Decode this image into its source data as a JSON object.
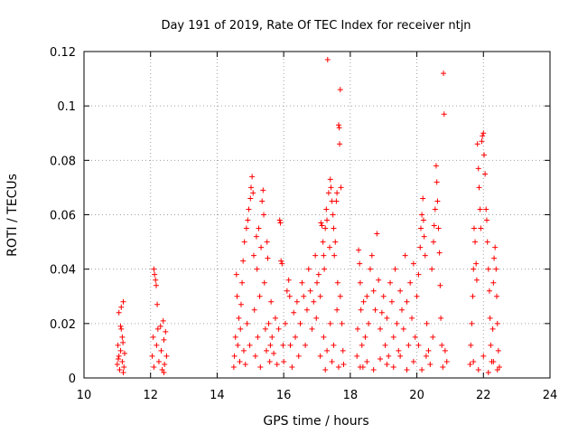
{
  "chart_data": {
    "type": "scatter",
    "title": "Day 191 of 2019, Rate Of TEC Index for receiver ntjn",
    "xlabel": "GPS time / hours",
    "ylabel": "ROTI / TECUs",
    "xlim": [
      10,
      24
    ],
    "ylim": [
      0,
      0.12
    ],
    "xticks": [
      10,
      12,
      14,
      16,
      18,
      20,
      22,
      24
    ],
    "xtick_labels": [
      "10",
      "12",
      "14",
      "16",
      "18",
      "20",
      "22",
      "24"
    ],
    "yticks": [
      0,
      0.02,
      0.04,
      0.06,
      0.08,
      0.1,
      0.12
    ],
    "ytick_labels": [
      "0",
      "0.02",
      "0.04",
      "0.06",
      "0.08",
      "0.1",
      "0.12"
    ],
    "grid": true,
    "marker": "+",
    "color": "#ff0000",
    "series": [
      {
        "name": "ROTI",
        "points": [
          [
            11.0,
            0.005
          ],
          [
            11.02,
            0.012
          ],
          [
            11.05,
            0.008
          ],
          [
            11.07,
            0.003
          ],
          [
            11.1,
            0.01
          ],
          [
            11.12,
            0.018
          ],
          [
            11.15,
            0.006
          ],
          [
            11.17,
            0.013
          ],
          [
            11.2,
            0.004
          ],
          [
            11.22,
            0.009
          ],
          [
            11.05,
            0.024
          ],
          [
            11.12,
            0.026
          ],
          [
            11.18,
            0.028
          ],
          [
            11.1,
            0.019
          ],
          [
            11.15,
            0.015
          ],
          [
            11.03,
            0.007
          ],
          [
            11.18,
            0.002
          ],
          [
            12.05,
            0.008
          ],
          [
            12.08,
            0.015
          ],
          [
            12.1,
            0.004
          ],
          [
            12.12,
            0.038
          ],
          [
            12.15,
            0.036
          ],
          [
            12.17,
            0.034
          ],
          [
            12.18,
            0.012
          ],
          [
            12.2,
            0.027
          ],
          [
            12.25,
            0.006
          ],
          [
            12.3,
            0.019
          ],
          [
            12.32,
            0.01
          ],
          [
            12.35,
            0.003
          ],
          [
            12.38,
            0.021
          ],
          [
            12.4,
            0.014
          ],
          [
            12.42,
            0.005
          ],
          [
            12.45,
            0.017
          ],
          [
            12.48,
            0.008
          ],
          [
            12.1,
            0.04
          ],
          [
            12.22,
            0.018
          ],
          [
            12.4,
            0.002
          ],
          [
            14.5,
            0.004
          ],
          [
            14.52,
            0.008
          ],
          [
            14.55,
            0.015
          ],
          [
            14.58,
            0.038
          ],
          [
            14.6,
            0.03
          ],
          [
            14.62,
            0.012
          ],
          [
            14.65,
            0.022
          ],
          [
            14.68,
            0.006
          ],
          [
            14.7,
            0.018
          ],
          [
            14.72,
            0.027
          ],
          [
            14.75,
            0.035
          ],
          [
            14.78,
            0.043
          ],
          [
            14.8,
            0.01
          ],
          [
            14.82,
            0.05
          ],
          [
            14.85,
            0.005
          ],
          [
            14.88,
            0.055
          ],
          [
            14.9,
            0.02
          ],
          [
            14.92,
            0.058
          ],
          [
            14.95,
            0.062
          ],
          [
            14.98,
            0.012
          ],
          [
            15.0,
            0.066
          ],
          [
            15.02,
            0.07
          ],
          [
            15.05,
            0.074
          ],
          [
            15.08,
            0.068
          ],
          [
            15.1,
            0.045
          ],
          [
            15.12,
            0.025
          ],
          [
            15.15,
            0.008
          ],
          [
            15.18,
            0.052
          ],
          [
            15.2,
            0.04
          ],
          [
            15.22,
            0.015
          ],
          [
            15.25,
            0.055
          ],
          [
            15.28,
            0.03
          ],
          [
            15.3,
            0.004
          ],
          [
            15.32,
            0.048
          ],
          [
            15.35,
            0.065
          ],
          [
            15.38,
            0.069
          ],
          [
            15.4,
            0.06
          ],
          [
            15.42,
            0.035
          ],
          [
            15.45,
            0.018
          ],
          [
            15.48,
            0.01
          ],
          [
            15.5,
            0.05
          ],
          [
            15.52,
            0.044
          ],
          [
            15.55,
            0.02
          ],
          [
            15.58,
            0.006
          ],
          [
            15.6,
            0.012
          ],
          [
            15.62,
            0.028
          ],
          [
            15.65,
            0.015
          ],
          [
            15.7,
            0.009
          ],
          [
            15.75,
            0.022
          ],
          [
            15.8,
            0.005
          ],
          [
            15.85,
            0.018
          ],
          [
            15.88,
            0.058
          ],
          [
            15.9,
            0.057
          ],
          [
            15.92,
            0.043
          ],
          [
            15.95,
            0.042
          ],
          [
            15.98,
            0.012
          ],
          [
            16.0,
            0.006
          ],
          [
            16.05,
            0.02
          ],
          [
            16.1,
            0.032
          ],
          [
            16.15,
            0.036
          ],
          [
            16.18,
            0.03
          ],
          [
            16.2,
            0.012
          ],
          [
            16.25,
            0.004
          ],
          [
            16.3,
            0.024
          ],
          [
            16.35,
            0.015
          ],
          [
            16.4,
            0.028
          ],
          [
            16.45,
            0.008
          ],
          [
            16.5,
            0.02
          ],
          [
            16.55,
            0.035
          ],
          [
            16.6,
            0.03
          ],
          [
            16.65,
            0.012
          ],
          [
            16.7,
            0.025
          ],
          [
            16.75,
            0.04
          ],
          [
            16.8,
            0.032
          ],
          [
            16.85,
            0.018
          ],
          [
            16.9,
            0.028
          ],
          [
            16.95,
            0.045
          ],
          [
            16.98,
            0.022
          ],
          [
            17.0,
            0.035
          ],
          [
            17.05,
            0.038
          ],
          [
            17.1,
            0.03
          ],
          [
            17.12,
            0.057
          ],
          [
            17.15,
            0.056
          ],
          [
            17.18,
            0.05
          ],
          [
            17.2,
            0.045
          ],
          [
            17.22,
            0.04
          ],
          [
            17.25,
            0.055
          ],
          [
            17.28,
            0.062
          ],
          [
            17.3,
            0.058
          ],
          [
            17.32,
            0.117
          ],
          [
            17.35,
            0.068
          ],
          [
            17.38,
            0.048
          ],
          [
            17.4,
            0.073
          ],
          [
            17.42,
            0.07
          ],
          [
            17.45,
            0.065
          ],
          [
            17.48,
            0.06
          ],
          [
            17.5,
            0.055
          ],
          [
            17.52,
            0.045
          ],
          [
            17.55,
            0.05
          ],
          [
            17.58,
            0.065
          ],
          [
            17.6,
            0.068
          ],
          [
            17.62,
            0.035
          ],
          [
            17.65,
            0.093
          ],
          [
            17.67,
            0.092
          ],
          [
            17.68,
            0.086
          ],
          [
            17.7,
            0.106
          ],
          [
            17.72,
            0.07
          ],
          [
            17.75,
            0.02
          ],
          [
            17.78,
            0.01
          ],
          [
            17.8,
            0.005
          ],
          [
            17.1,
            0.008
          ],
          [
            17.2,
            0.015
          ],
          [
            17.3,
            0.01
          ],
          [
            17.4,
            0.02
          ],
          [
            17.5,
            0.012
          ],
          [
            17.6,
            0.025
          ],
          [
            17.7,
            0.03
          ],
          [
            17.25,
            0.003
          ],
          [
            17.45,
            0.006
          ],
          [
            17.65,
            0.004
          ],
          [
            18.2,
            0.008
          ],
          [
            18.22,
            0.018
          ],
          [
            18.25,
            0.047
          ],
          [
            18.28,
            0.042
          ],
          [
            18.3,
            0.035
          ],
          [
            18.32,
            0.025
          ],
          [
            18.35,
            0.012
          ],
          [
            18.38,
            0.004
          ],
          [
            18.4,
            0.028
          ],
          [
            18.45,
            0.015
          ],
          [
            18.5,
            0.03
          ],
          [
            18.55,
            0.02
          ],
          [
            18.6,
            0.04
          ],
          [
            18.65,
            0.045
          ],
          [
            18.7,
            0.032
          ],
          [
            18.75,
            0.025
          ],
          [
            18.8,
            0.053
          ],
          [
            18.85,
            0.036
          ],
          [
            18.9,
            0.018
          ],
          [
            18.95,
            0.024
          ],
          [
            19.0,
            0.03
          ],
          [
            19.05,
            0.012
          ],
          [
            19.1,
            0.022
          ],
          [
            19.15,
            0.008
          ],
          [
            19.2,
            0.035
          ],
          [
            19.25,
            0.028
          ],
          [
            19.3,
            0.015
          ],
          [
            19.35,
            0.04
          ],
          [
            19.4,
            0.02
          ],
          [
            19.45,
            0.01
          ],
          [
            19.5,
            0.032
          ],
          [
            19.55,
            0.025
          ],
          [
            19.6,
            0.018
          ],
          [
            19.65,
            0.045
          ],
          [
            19.7,
            0.028
          ],
          [
            19.75,
            0.012
          ],
          [
            19.8,
            0.035
          ],
          [
            19.85,
            0.022
          ],
          [
            19.9,
            0.042
          ],
          [
            19.95,
            0.015
          ],
          [
            18.3,
            0.004
          ],
          [
            18.5,
            0.006
          ],
          [
            18.7,
            0.003
          ],
          [
            18.9,
            0.007
          ],
          [
            19.1,
            0.005
          ],
          [
            19.3,
            0.004
          ],
          [
            19.5,
            0.008
          ],
          [
            19.7,
            0.003
          ],
          [
            19.9,
            0.006
          ],
          [
            20.0,
            0.03
          ],
          [
            20.05,
            0.038
          ],
          [
            20.1,
            0.048
          ],
          [
            20.12,
            0.055
          ],
          [
            20.15,
            0.06
          ],
          [
            20.18,
            0.066
          ],
          [
            20.2,
            0.058
          ],
          [
            20.22,
            0.052
          ],
          [
            20.25,
            0.045
          ],
          [
            20.3,
            0.02
          ],
          [
            20.35,
            0.01
          ],
          [
            20.4,
            0.005
          ],
          [
            20.45,
            0.04
          ],
          [
            20.5,
            0.05
          ],
          [
            20.52,
            0.056
          ],
          [
            20.55,
            0.062
          ],
          [
            20.58,
            0.078
          ],
          [
            20.6,
            0.072
          ],
          [
            20.62,
            0.065
          ],
          [
            20.65,
            0.055
          ],
          [
            20.68,
            0.046
          ],
          [
            20.7,
            0.034
          ],
          [
            20.72,
            0.022
          ],
          [
            20.75,
            0.012
          ],
          [
            20.78,
            0.004
          ],
          [
            20.8,
            0.112
          ],
          [
            20.82,
            0.097
          ],
          [
            20.85,
            0.01
          ],
          [
            20.9,
            0.006
          ],
          [
            20.05,
            0.012
          ],
          [
            20.15,
            0.003
          ],
          [
            20.28,
            0.008
          ],
          [
            20.48,
            0.015
          ],
          [
            21.6,
            0.005
          ],
          [
            21.62,
            0.012
          ],
          [
            21.65,
            0.02
          ],
          [
            21.68,
            0.03
          ],
          [
            21.7,
            0.04
          ],
          [
            21.72,
            0.055
          ],
          [
            21.75,
            0.05
          ],
          [
            21.78,
            0.042
          ],
          [
            21.8,
            0.036
          ],
          [
            21.82,
            0.086
          ],
          [
            21.85,
            0.077
          ],
          [
            21.87,
            0.07
          ],
          [
            21.9,
            0.062
          ],
          [
            21.92,
            0.055
          ],
          [
            21.95,
            0.087
          ],
          [
            21.97,
            0.089
          ],
          [
            22.0,
            0.09
          ],
          [
            22.02,
            0.082
          ],
          [
            22.05,
            0.075
          ],
          [
            22.08,
            0.062
          ],
          [
            22.1,
            0.058
          ],
          [
            22.12,
            0.05
          ],
          [
            22.15,
            0.04
          ],
          [
            22.18,
            0.032
          ],
          [
            22.2,
            0.022
          ],
          [
            22.22,
            0.012
          ],
          [
            22.25,
            0.006
          ],
          [
            22.28,
            0.018
          ],
          [
            22.3,
            0.035
          ],
          [
            22.32,
            0.044
          ],
          [
            22.35,
            0.048
          ],
          [
            22.38,
            0.04
          ],
          [
            22.4,
            0.03
          ],
          [
            22.42,
            0.02
          ],
          [
            22.45,
            0.01
          ],
          [
            22.48,
            0.004
          ],
          [
            21.7,
            0.006
          ],
          [
            21.85,
            0.003
          ],
          [
            22.0,
            0.008
          ],
          [
            22.15,
            0.002
          ],
          [
            22.3,
            0.006
          ],
          [
            22.42,
            0.003
          ]
        ]
      }
    ]
  }
}
